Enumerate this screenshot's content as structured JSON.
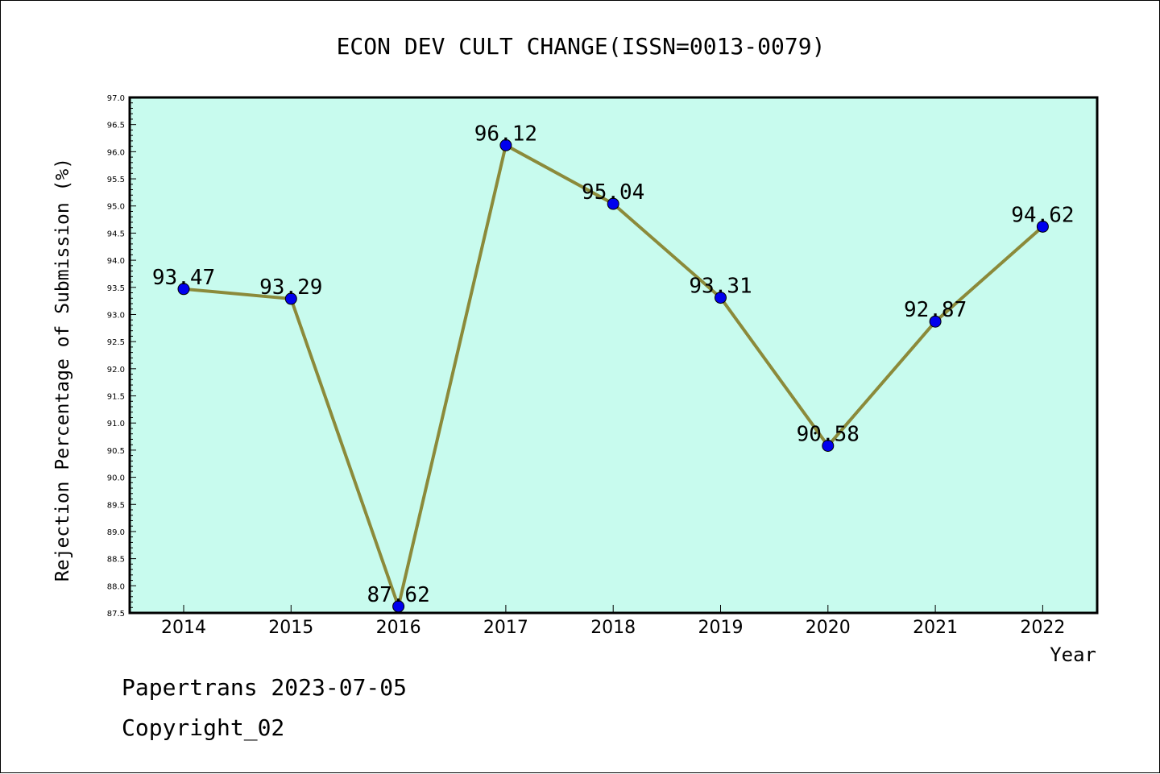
{
  "chart_data": {
    "type": "line",
    "title": "ECON DEV CULT CHANGE(ISSN=0013-0079)",
    "xlabel": "Year",
    "ylabel": "Rejection Percentage of Submission (%)",
    "categories": [
      "2014",
      "2015",
      "2016",
      "2017",
      "2018",
      "2019",
      "2020",
      "2021",
      "2022"
    ],
    "values": [
      93.47,
      93.29,
      87.62,
      96.12,
      95.04,
      93.31,
      90.58,
      92.87,
      94.62
    ],
    "data_labels": [
      "93.47",
      "93.29",
      "87.62",
      "96.12",
      "95.04",
      "93.31",
      "90.58",
      "92.87",
      "94.62"
    ],
    "ylim": [
      87.5,
      97.0
    ],
    "yticks": [
      "87.5",
      "88.0",
      "88.5",
      "89.0",
      "89.5",
      "90.0",
      "90.5",
      "91.0",
      "91.5",
      "92.0",
      "92.5",
      "93.0",
      "93.5",
      "94.0",
      "94.5",
      "95.0",
      "95.5",
      "96.0",
      "96.5",
      "97.0"
    ],
    "grid": false,
    "colors": {
      "plot_background": "#c8fbee",
      "line": "#8b8a3a",
      "marker": "#0000ee"
    }
  },
  "footer": {
    "source": "Papertrans 2023-07-05",
    "copyright": "Copyright_02"
  }
}
